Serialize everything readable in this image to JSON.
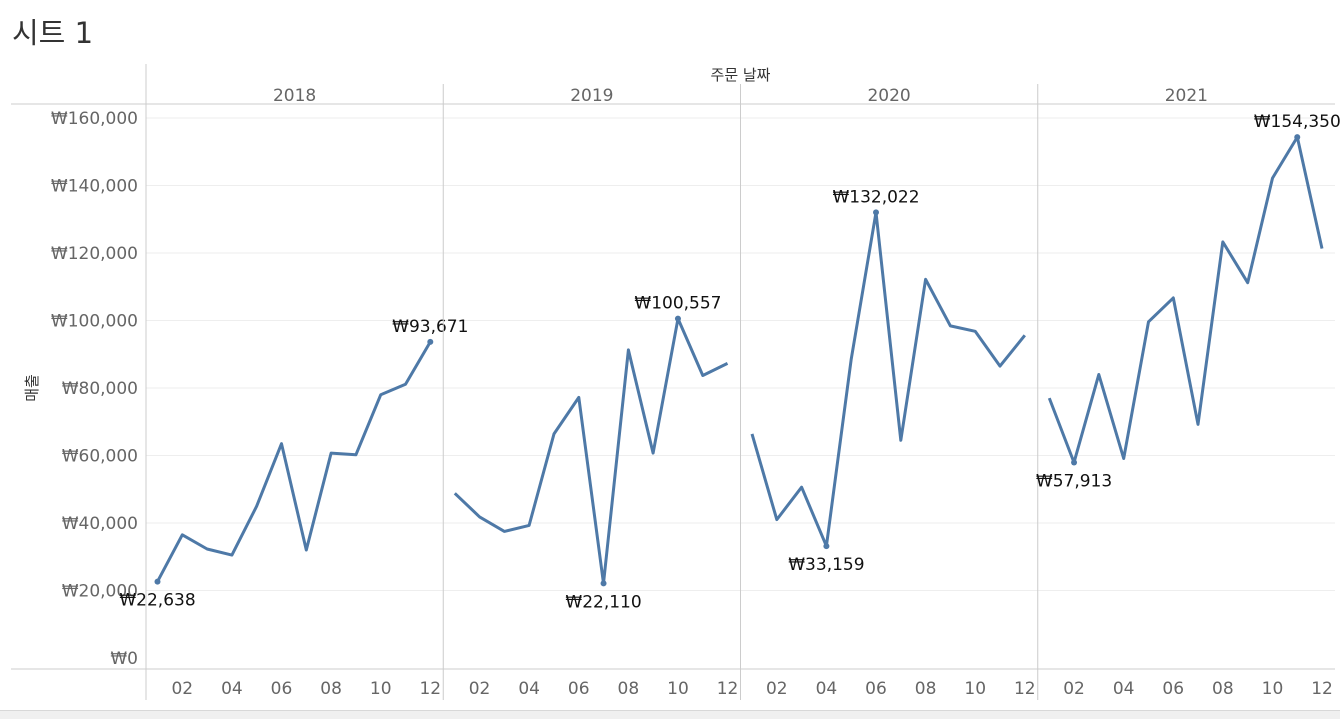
{
  "sheet": {
    "title": "시트 1"
  },
  "colors": {
    "line": "#4e79a7",
    "grid": "#eeeeee",
    "divider": "#cccccc",
    "text": "#666666"
  },
  "chart_data": {
    "type": "line",
    "column_header": "주문 날짜",
    "ylabel": "매출",
    "ylim": [
      0,
      160000
    ],
    "yticks": [
      0,
      20000,
      40000,
      60000,
      80000,
      100000,
      120000,
      140000,
      160000
    ],
    "ytick_labels": [
      "₩0",
      "₩20,000",
      "₩40,000",
      "₩60,000",
      "₩80,000",
      "₩100,000",
      "₩120,000",
      "₩140,000",
      "₩160,000"
    ],
    "months": [
      "01",
      "02",
      "03",
      "04",
      "05",
      "06",
      "07",
      "08",
      "09",
      "10",
      "11",
      "12"
    ],
    "xtick_labels": [
      "02",
      "04",
      "06",
      "08",
      "10",
      "12"
    ],
    "grid": true,
    "panels": [
      {
        "year": "2018",
        "values": [
          22638,
          36500,
          32300,
          30500,
          45000,
          63500,
          32000,
          60700,
          60200,
          78000,
          81100,
          93671
        ],
        "annotations": [
          {
            "month": 1,
            "label": "₩22,638",
            "pos": "below"
          },
          {
            "month": 12,
            "label": "₩93,671",
            "pos": "above"
          }
        ]
      },
      {
        "year": "2019",
        "values": [
          48800,
          41800,
          37500,
          39300,
          66400,
          77200,
          22110,
          91300,
          60700,
          100557,
          83700,
          87300
        ],
        "annotations": [
          {
            "month": 7,
            "label": "₩22,110",
            "pos": "below"
          },
          {
            "month": 10,
            "label": "₩100,557",
            "pos": "above"
          }
        ]
      },
      {
        "year": "2020",
        "values": [
          66400,
          41000,
          50600,
          33159,
          88500,
          132022,
          64500,
          112200,
          98400,
          96800,
          86500,
          95600
        ],
        "annotations": [
          {
            "month": 4,
            "label": "₩33,159",
            "pos": "below"
          },
          {
            "month": 6,
            "label": "₩132,022",
            "pos": "above"
          }
        ]
      },
      {
        "year": "2021",
        "values": [
          77000,
          57913,
          84000,
          59100,
          99600,
          106700,
          69200,
          123300,
          111200,
          142200,
          154350,
          121300
        ],
        "annotations": [
          {
            "month": 2,
            "label": "₩57,913",
            "pos": "below"
          },
          {
            "month": 11,
            "label": "₩154,350",
            "pos": "above"
          }
        ]
      }
    ]
  }
}
